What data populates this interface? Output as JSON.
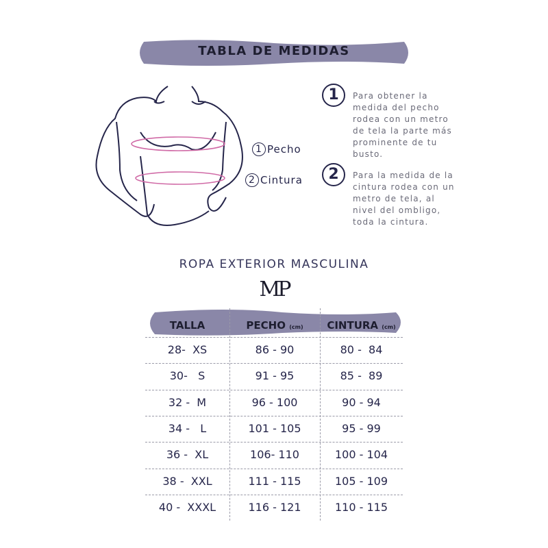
{
  "header": {
    "title": "TABLA DE MEDIDAS"
  },
  "colors": {
    "band": "#8a87a8",
    "text": "#25254a",
    "measure_line": "#d06aa6"
  },
  "figure": {
    "labels": [
      {
        "num": "1",
        "text": "Pecho"
      },
      {
        "num": "2",
        "text": "Cintura"
      }
    ]
  },
  "instructions": [
    {
      "num": "1",
      "text": "Para obtener la medida del pecho rodea con un metro de tela la parte más prominente de tu busto."
    },
    {
      "num": "2",
      "text": "Para la medida de la cintura rodea con un metro de tela, al nivel del ombligo, toda la cintura."
    }
  ],
  "section_title": "ROPA EXTERIOR MASCULINA",
  "logo": "MP",
  "table": {
    "headers": [
      {
        "label": "TALLA",
        "unit": ""
      },
      {
        "label": "PECHO",
        "unit": "(cm)"
      },
      {
        "label": "CINTURA",
        "unit": "(cm)"
      }
    ],
    "rows": [
      [
        "28-  XS",
        "86 - 90",
        "80 -  84"
      ],
      [
        "30-   S",
        "91 - 95",
        "85 -  89"
      ],
      [
        "32 -  M",
        "96 - 100",
        "90 - 94"
      ],
      [
        "34 -   L",
        "101 - 105",
        "95 - 99"
      ],
      [
        "36 -  XL",
        "106- 110",
        "100 - 104"
      ],
      [
        "38 -  XXL",
        "111 - 115",
        "105 - 109"
      ],
      [
        "40 -  XXXL",
        "116 - 121",
        "110 - 115"
      ]
    ]
  }
}
